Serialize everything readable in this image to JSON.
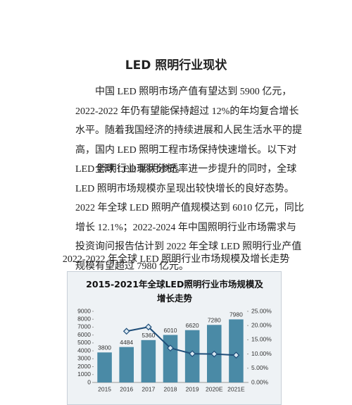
{
  "document": {
    "title": "LED 照明行业现状",
    "paragraphs": [
      "中国 LED 照明市场产值有望达到 5900 亿元，2022-2022 年仍有望能保持超过 12%的年均复合增长水平。随着我国经济的持续进展和人民生活水平的提高，国内 LED 照明工程市场保持快速增长。以下对 LED 照明行业现状分析。",
      "全球 LED 照明渗透率进一步提升的同时，全球 LED 照明市场规模亦呈现出较快增长的良好态势。2022 年全球 LED 照明产值规模达到 6010 亿元，同比增长 12.1%；2022-2024 年中国照明行业市场需求与投资询问报告估计到 2022 年全球 LED 照明行业产值规模有望超过 7980 亿元。"
    ],
    "caption": "2022-2022 年全球 LED 照明行业市场规模及增长走势"
  },
  "chart_data": {
    "type": "bar-line",
    "title": "2015-2021年全球LED照明行业市场规模及增长走势",
    "categories": [
      "2015",
      "2016",
      "2017",
      "2018",
      "2019",
      "2020E",
      "2021E"
    ],
    "series": [
      {
        "type": "bar",
        "color": "#4a8aa6",
        "values": [
          3800,
          4484,
          5360,
          6010,
          6620,
          7280,
          7980
        ]
      },
      {
        "type": "line",
        "color": "#1f4e79",
        "axis": "y2",
        "values": [
          null,
          18.0,
          19.5,
          12.1,
          10.1,
          10.0,
          9.6
        ]
      }
    ],
    "ylim": [
      0,
      9000
    ],
    "yticks": [
      0,
      1000,
      2000,
      3000,
      4000,
      5000,
      6000,
      7000,
      8000,
      9000
    ],
    "y2lim": [
      0,
      25
    ],
    "y2ticks": [
      {
        "value": 0,
        "label": "0.00%"
      },
      {
        "value": 5,
        "label": "5.00%"
      },
      {
        "value": 10,
        "label": "10.00%"
      },
      {
        "value": 15,
        "label": "15.00%"
      },
      {
        "value": 20,
        "label": "20.00%"
      },
      {
        "value": 25,
        "label": "25.00%"
      }
    ],
    "grid": false
  }
}
